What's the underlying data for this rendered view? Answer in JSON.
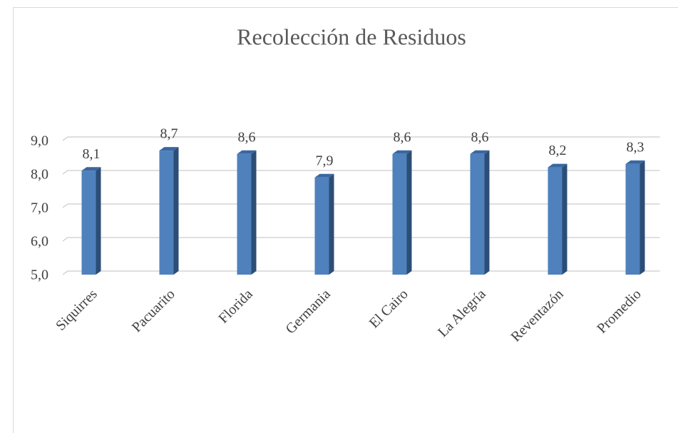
{
  "chart_data": {
    "type": "bar",
    "title": "Recolección de Residuos",
    "categories": [
      "Siquirres",
      "Pacuarito",
      "Florida",
      "Germania",
      "El Cairo",
      "La Alegría",
      "Reventazón",
      "Promedio"
    ],
    "values": [
      8.1,
      8.7,
      8.6,
      7.9,
      8.6,
      8.6,
      8.2,
      8.3
    ],
    "value_labels": [
      "8,1",
      "8,7",
      "8,6",
      "7,9",
      "8,6",
      "8,6",
      "8,2",
      "8,3"
    ],
    "color": "#4f81bd",
    "ylim": [
      5,
      9
    ],
    "yticks": [
      {
        "value": 5,
        "label": "5,0"
      },
      {
        "value": 6,
        "label": "6,0"
      },
      {
        "value": 7,
        "label": "7,0"
      },
      {
        "value": 8,
        "label": "8,0"
      },
      {
        "value": 9,
        "label": "9,0"
      }
    ],
    "grid": true
  }
}
